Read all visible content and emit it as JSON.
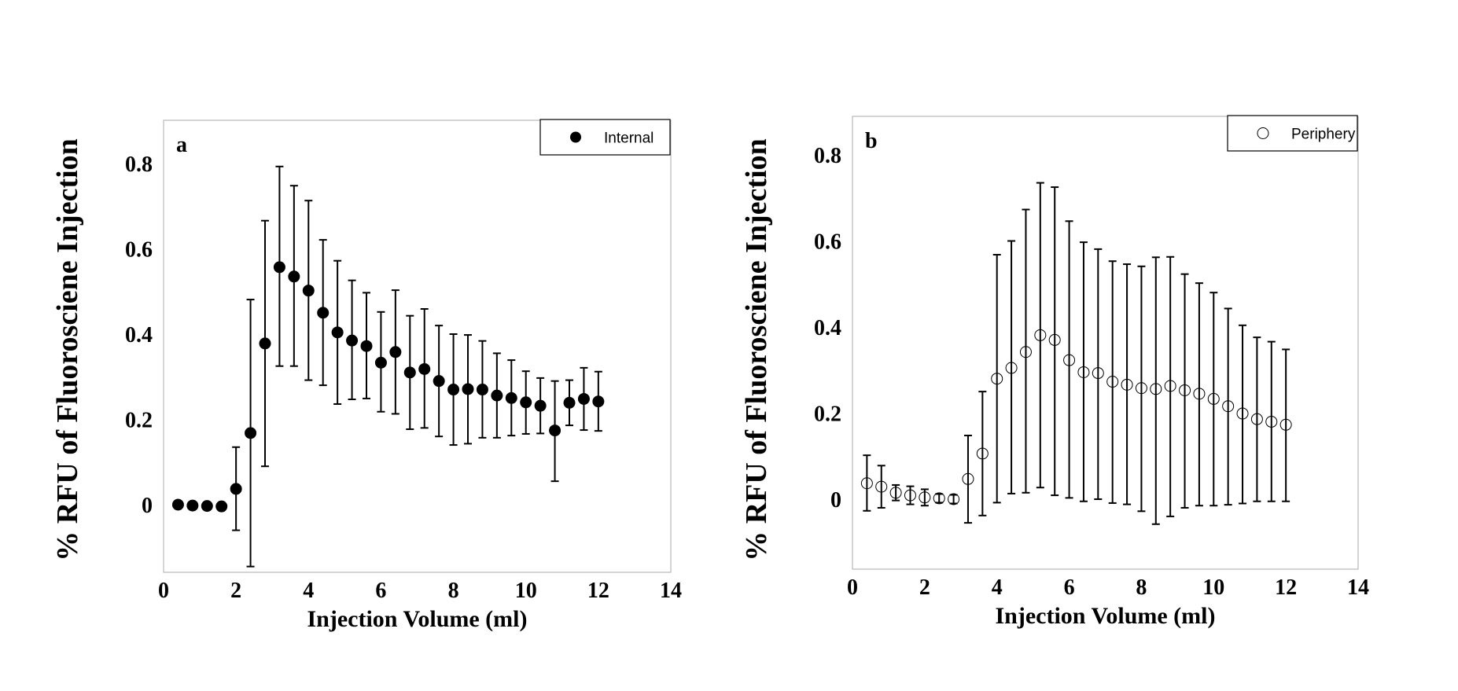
{
  "chart_data": [
    {
      "type": "scatter",
      "panel_label": "a",
      "xlabel": "Injection Volume (ml)",
      "ylabel": "% RFU of Fluorosciene Injection",
      "xlim": [
        0,
        14
      ],
      "ylim": [
        -0.15,
        0.9
      ],
      "xticks": [
        0,
        2,
        4,
        6,
        8,
        10,
        12,
        14
      ],
      "yticks": [
        0,
        0.2,
        0.4,
        0.6,
        0.8
      ],
      "x_tick_labels": [
        "0",
        "2",
        "4",
        "6",
        "8",
        "10",
        "12",
        "14"
      ],
      "y_tick_labels": [
        "0",
        "0.2",
        "0.4",
        "0.6",
        "0.8"
      ],
      "grid": false,
      "legend_position": "top-right",
      "marker": "filled-circle",
      "color": "#000000",
      "series": [
        {
          "name": "Internal",
          "x": [
            0.4,
            0.8,
            1.2,
            1.6,
            2.0,
            2.4,
            2.8,
            3.2,
            3.6,
            4.0,
            4.4,
            4.8,
            5.2,
            5.6,
            6.0,
            6.4,
            6.8,
            7.2,
            7.6,
            8.0,
            8.4,
            8.8,
            9.2,
            9.6,
            10.0,
            10.4,
            10.8,
            11.2,
            11.6,
            12.0
          ],
          "y": [
            0.0,
            -0.002,
            -0.003,
            -0.004,
            0.037,
            0.168,
            0.378,
            0.557,
            0.535,
            0.502,
            0.45,
            0.404,
            0.385,
            0.372,
            0.333,
            0.358,
            0.31,
            0.318,
            0.29,
            0.27,
            0.271,
            0.27,
            0.256,
            0.25,
            0.24,
            0.232,
            0.174,
            0.239,
            0.248,
            0.242
          ],
          "err_low": [
            null,
            null,
            null,
            null,
            -0.06,
            -0.145,
            0.09,
            0.325,
            0.325,
            0.292,
            0.28,
            0.236,
            0.247,
            0.249,
            0.218,
            0.213,
            0.177,
            0.18,
            0.16,
            0.14,
            0.143,
            0.157,
            0.157,
            0.162,
            0.166,
            0.167,
            0.055,
            0.186,
            0.175,
            0.173
          ],
          "err_high": [
            null,
            null,
            null,
            null,
            0.135,
            0.481,
            0.666,
            0.793,
            0.748,
            0.713,
            0.621,
            0.572,
            0.526,
            0.497,
            0.452,
            0.503,
            0.443,
            0.459,
            0.42,
            0.4,
            0.398,
            0.384,
            0.355,
            0.339,
            0.313,
            0.297,
            0.29,
            0.292,
            0.321,
            0.312
          ]
        }
      ]
    },
    {
      "type": "scatter",
      "panel_label": "b",
      "xlabel": "Injection Volume (ml)",
      "ylabel": "% RFU of Fluorosciene Injection",
      "xlim": [
        0,
        14
      ],
      "ylim": [
        -0.15,
        0.9
      ],
      "xticks": [
        0,
        2,
        4,
        6,
        8,
        10,
        12,
        14
      ],
      "yticks": [
        0,
        0.2,
        0.4,
        0.6,
        0.8
      ],
      "x_tick_labels": [
        "0",
        "2",
        "4",
        "6",
        "8",
        "10",
        "12",
        "14"
      ],
      "y_tick_labels": [
        "0",
        "0.2",
        "0.4",
        "0.6",
        "0.8"
      ],
      "grid": false,
      "legend_position": "top-right",
      "marker": "open-circle",
      "color": "#000000",
      "series": [
        {
          "name": "Periphery",
          "x": [
            0.4,
            0.8,
            1.2,
            1.6,
            2.0,
            2.4,
            2.8,
            3.2,
            3.6,
            4.0,
            4.4,
            4.8,
            5.2,
            5.6,
            6.0,
            6.4,
            6.8,
            7.2,
            7.6,
            8.0,
            8.4,
            8.8,
            9.2,
            9.6,
            10.0,
            10.4,
            10.8,
            11.2,
            11.6,
            12.0
          ],
          "y": [
            0.037,
            0.029,
            0.015,
            0.009,
            0.004,
            0.002,
            0.0,
            0.047,
            0.106,
            0.28,
            0.305,
            0.342,
            0.381,
            0.37,
            0.323,
            0.295,
            0.293,
            0.273,
            0.266,
            0.258,
            0.256,
            0.263,
            0.253,
            0.245,
            0.233,
            0.216,
            0.199,
            0.186,
            0.18,
            0.173
          ],
          "err_low": [
            -0.027,
            -0.02,
            -0.003,
            -0.012,
            -0.015,
            -0.008,
            -0.01,
            -0.055,
            -0.038,
            -0.008,
            0.013,
            0.015,
            0.027,
            0.009,
            0.003,
            -0.005,
            0.0,
            -0.009,
            -0.012,
            -0.028,
            -0.058,
            -0.04,
            -0.02,
            -0.015,
            -0.015,
            -0.013,
            -0.01,
            -0.005,
            -0.005,
            -0.005
          ],
          "err_high": [
            0.102,
            0.078,
            0.033,
            0.03,
            0.023,
            0.012,
            0.01,
            0.148,
            0.25,
            0.568,
            0.6,
            0.673,
            0.735,
            0.725,
            0.646,
            0.597,
            0.581,
            0.553,
            0.546,
            0.541,
            0.562,
            0.563,
            0.523,
            0.502,
            0.48,
            0.443,
            0.404,
            0.376,
            0.366,
            0.348
          ]
        }
      ]
    }
  ]
}
